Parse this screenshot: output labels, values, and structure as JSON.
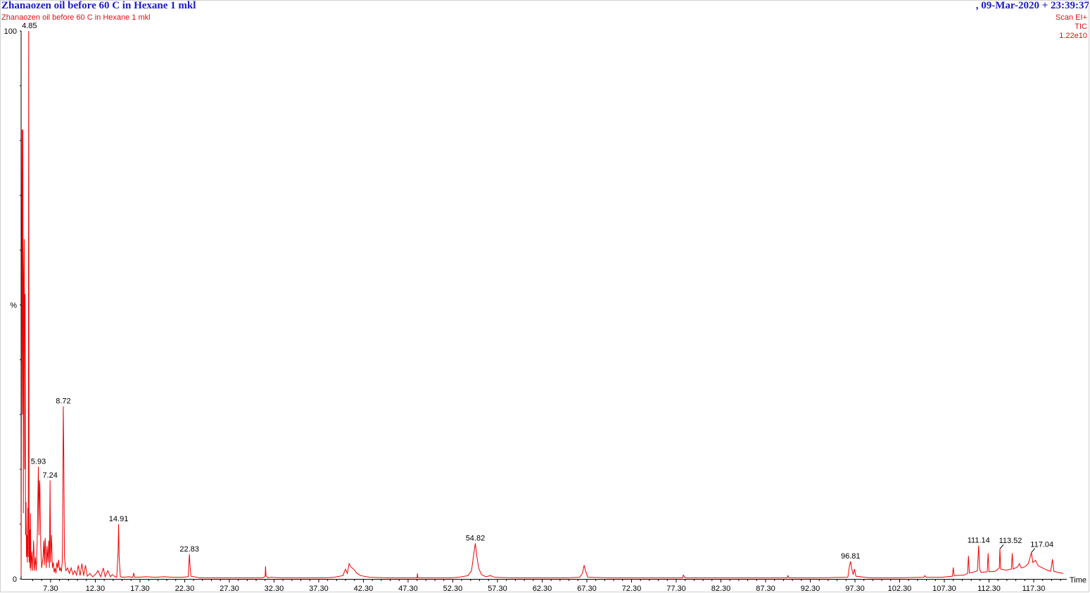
{
  "header": {
    "title": "Zhanaozen oil before 60 C in Hexane 1 mkl",
    "date_time": ",  09-Mar-2020 + 23:39:37",
    "subtitle": "Zhanaozen oil before 60 C in Hexane 1 mkl",
    "scan_mode": "Scan EI+",
    "trace": "TIC",
    "intensity": "1.22e10"
  },
  "colors": {
    "trace": "#ee0000",
    "title": "#1a1acc",
    "axis": "#000000"
  },
  "chart_data": {
    "type": "line",
    "title": "Zhanaozen oil before 60 C in Hexane 1 mkl",
    "xlabel": "Time",
    "ylabel": "%",
    "xlim": [
      4.0,
      121.0
    ],
    "ylim": [
      0,
      100
    ],
    "y_tick_labels": [
      "0",
      "%",
      "100"
    ],
    "x_ticks": [
      7.3,
      12.3,
      17.3,
      22.3,
      27.3,
      32.3,
      37.3,
      42.3,
      47.3,
      52.3,
      57.3,
      62.3,
      67.3,
      72.3,
      77.3,
      82.3,
      87.3,
      92.3,
      97.3,
      102.3,
      107.3,
      112.3,
      117.3
    ],
    "x_tick_labels": [
      "7.30",
      "12.30",
      "17.30",
      "22.30",
      "27.30",
      "32.30",
      "37.30",
      "42.30",
      "47.30",
      "52.30",
      "57.30",
      "62.30",
      "67.30",
      "72.30",
      "77.30",
      "82.30",
      "87.30",
      "92.30",
      "97.30",
      "102.30",
      "107.30",
      "112.30",
      "117.30"
    ],
    "grid": false,
    "legend": "none",
    "series": [
      {
        "points": [
          [
            4.0,
            0.5
          ],
          [
            4.05,
            40
          ],
          [
            4.1,
            82
          ],
          [
            4.15,
            30
          ],
          [
            4.2,
            82
          ],
          [
            4.25,
            12
          ],
          [
            4.3,
            55
          ],
          [
            4.35,
            62
          ],
          [
            4.4,
            20
          ],
          [
            4.45,
            52
          ],
          [
            4.5,
            8
          ],
          [
            4.55,
            14
          ],
          [
            4.6,
            4
          ],
          [
            4.65,
            8
          ],
          [
            4.7,
            3
          ],
          [
            4.75,
            13
          ],
          [
            4.8,
            4
          ],
          [
            4.85,
            100
          ],
          [
            4.9,
            3
          ],
          [
            4.95,
            9
          ],
          [
            5.0,
            2
          ],
          [
            5.05,
            12
          ],
          [
            5.1,
            1.5
          ],
          [
            5.2,
            5
          ],
          [
            5.3,
            1.5
          ],
          [
            5.4,
            7
          ],
          [
            5.5,
            1.5
          ],
          [
            5.6,
            4
          ],
          [
            5.7,
            1.5
          ],
          [
            5.8,
            7
          ],
          [
            5.93,
            20.5
          ],
          [
            6.0,
            8
          ],
          [
            6.05,
            18
          ],
          [
            6.1,
            17
          ],
          [
            6.2,
            6
          ],
          [
            6.3,
            2
          ],
          [
            6.45,
            4
          ],
          [
            6.55,
            7
          ],
          [
            6.6,
            2.5
          ],
          [
            6.7,
            7.5
          ],
          [
            6.8,
            2
          ],
          [
            6.9,
            6
          ],
          [
            7.0,
            3
          ],
          [
            7.1,
            7
          ],
          [
            7.17,
            2
          ],
          [
            7.24,
            18
          ],
          [
            7.3,
            3
          ],
          [
            7.4,
            8
          ],
          [
            7.5,
            2
          ],
          [
            7.6,
            3
          ],
          [
            7.7,
            1.2
          ],
          [
            7.8,
            2
          ],
          [
            7.9,
            1
          ],
          [
            8.0,
            3
          ],
          [
            8.1,
            2
          ],
          [
            8.2,
            3.5
          ],
          [
            8.3,
            1.5
          ],
          [
            8.4,
            2
          ],
          [
            8.5,
            1.3
          ],
          [
            8.6,
            3
          ],
          [
            8.65,
            10
          ],
          [
            8.72,
            31.5
          ],
          [
            8.78,
            22
          ],
          [
            8.85,
            4
          ],
          [
            9.0,
            1.5
          ],
          [
            9.2,
            2
          ],
          [
            9.4,
            1
          ],
          [
            9.6,
            2
          ],
          [
            9.8,
            0.8
          ],
          [
            10.0,
            1.5
          ],
          [
            10.2,
            0.7
          ],
          [
            10.4,
            2.5
          ],
          [
            10.6,
            0.6
          ],
          [
            10.8,
            2.8
          ],
          [
            11.0,
            0.6
          ],
          [
            11.2,
            2.5
          ],
          [
            11.4,
            0.5
          ],
          [
            11.7,
            1
          ],
          [
            12.0,
            0.4
          ],
          [
            12.3,
            0.8
          ],
          [
            12.6,
            1.5
          ],
          [
            12.9,
            0.4
          ],
          [
            13.2,
            2
          ],
          [
            13.4,
            0.4
          ],
          [
            13.7,
            1.5
          ],
          [
            14.0,
            0.4
          ],
          [
            14.2,
            0.8
          ],
          [
            14.5,
            0.4
          ],
          [
            14.7,
            0.3
          ],
          [
            14.85,
            5
          ],
          [
            14.91,
            10
          ],
          [
            14.97,
            4
          ],
          [
            15.1,
            0.4
          ],
          [
            15.5,
            0.3
          ],
          [
            16.0,
            0.4
          ],
          [
            16.5,
            0.3
          ],
          [
            16.6,
            1.1
          ],
          [
            16.7,
            0.3
          ],
          [
            17.0,
            0.3
          ],
          [
            18.0,
            0.4
          ],
          [
            19.0,
            0.3
          ],
          [
            20.0,
            0.4
          ],
          [
            21.0,
            0.3
          ],
          [
            22.0,
            0.3
          ],
          [
            22.7,
            0.4
          ],
          [
            22.78,
            3
          ],
          [
            22.83,
            4.5
          ],
          [
            22.9,
            2.5
          ],
          [
            23.0,
            0.5
          ],
          [
            24.0,
            0.2
          ],
          [
            26.0,
            0.2
          ],
          [
            28.0,
            0.2
          ],
          [
            30.0,
            0.2
          ],
          [
            31.0,
            0.2
          ],
          [
            31.3,
            0.4
          ],
          [
            31.35,
            2.3
          ],
          [
            31.4,
            0.6
          ],
          [
            31.6,
            0.2
          ],
          [
            32.0,
            0.3
          ],
          [
            33.0,
            0.2
          ],
          [
            36.0,
            0.2
          ],
          [
            38.0,
            0.2
          ],
          [
            39.0,
            0.3
          ],
          [
            40.0,
            0.6
          ],
          [
            40.3,
            1.8
          ],
          [
            40.5,
            1.0
          ],
          [
            40.7,
            2.8
          ],
          [
            40.9,
            2.2
          ],
          [
            41.2,
            1.8
          ],
          [
            41.6,
            1.0
          ],
          [
            42.0,
            0.6
          ],
          [
            43.0,
            0.3
          ],
          [
            45.0,
            0.2
          ],
          [
            47.0,
            0.2
          ],
          [
            48.3,
            0.2
          ],
          [
            48.35,
            1
          ],
          [
            48.4,
            0.2
          ],
          [
            50.0,
            0.2
          ],
          [
            52.0,
            0.2
          ],
          [
            53.0,
            0.3
          ],
          [
            54.0,
            0.6
          ],
          [
            54.4,
            1.5
          ],
          [
            54.6,
            4
          ],
          [
            54.82,
            6.5
          ],
          [
            55.0,
            4
          ],
          [
            55.2,
            2
          ],
          [
            55.5,
            0.8
          ],
          [
            56.0,
            0.4
          ],
          [
            56.5,
            0.6
          ],
          [
            57.0,
            0.3
          ],
          [
            59.0,
            0.2
          ],
          [
            62.0,
            0.2
          ],
          [
            65.0,
            0.2
          ],
          [
            66.5,
            0.3
          ],
          [
            66.8,
            1
          ],
          [
            67.0,
            2.5
          ],
          [
            67.15,
            1.5
          ],
          [
            67.4,
            0.3
          ],
          [
            70.0,
            0.2
          ],
          [
            75.0,
            0.2
          ],
          [
            78.0,
            0.2
          ],
          [
            78.1,
            0.7
          ],
          [
            78.3,
            0.2
          ],
          [
            82.0,
            0.2
          ],
          [
            86.0,
            0.2
          ],
          [
            89.7,
            0.2
          ],
          [
            89.8,
            0.6
          ],
          [
            89.9,
            0.2
          ],
          [
            93.0,
            0.2
          ],
          [
            96.5,
            0.3
          ],
          [
            96.7,
            2.5
          ],
          [
            96.81,
            3.2
          ],
          [
            96.95,
            1.8
          ],
          [
            97.1,
            0.8
          ],
          [
            97.25,
            1.8
          ],
          [
            97.4,
            0.5
          ],
          [
            99.0,
            0.2
          ],
          [
            102.0,
            0.2
          ],
          [
            105.0,
            0.3
          ],
          [
            105.1,
            0.6
          ],
          [
            105.3,
            0.3
          ],
          [
            107.0,
            0.3
          ],
          [
            108.2,
            0.5
          ],
          [
            108.3,
            2.1
          ],
          [
            108.4,
            0.6
          ],
          [
            109.5,
            0.7
          ],
          [
            109.9,
            1.0
          ],
          [
            110.0,
            4.2
          ],
          [
            110.1,
            1.1
          ],
          [
            110.5,
            1.2
          ],
          [
            111.0,
            1.5
          ],
          [
            111.14,
            6.1
          ],
          [
            111.25,
            1.8
          ],
          [
            111.4,
            1.2
          ],
          [
            112.1,
            1.3
          ],
          [
            112.2,
            4.7
          ],
          [
            112.3,
            1.3
          ],
          [
            113.0,
            1.4
          ],
          [
            113.45,
            2
          ],
          [
            113.52,
            5.5
          ],
          [
            113.6,
            1.8
          ],
          [
            114.2,
            1.6
          ],
          [
            114.8,
            1.8
          ],
          [
            114.9,
            4.7
          ],
          [
            115.0,
            1.8
          ],
          [
            115.5,
            2.2
          ],
          [
            115.7,
            2.8
          ],
          [
            115.9,
            2.0
          ],
          [
            116.3,
            2.2
          ],
          [
            116.7,
            2.8
          ],
          [
            117.04,
            4.8
          ],
          [
            117.2,
            3.0
          ],
          [
            117.5,
            3.4
          ],
          [
            117.8,
            2.4
          ],
          [
            118.3,
            2.0
          ],
          [
            118.8,
            1.6
          ],
          [
            119.2,
            1.4
          ],
          [
            119.4,
            3.6
          ],
          [
            119.55,
            1.4
          ],
          [
            120.0,
            1.2
          ],
          [
            120.6,
            1.0
          ]
        ]
      }
    ],
    "annotations": [
      {
        "label": "4.85",
        "x": 4.85,
        "y": 100
      },
      {
        "label": "5.93",
        "x": 5.93,
        "y": 20.5
      },
      {
        "label": "7.24",
        "x": 7.24,
        "y": 18
      },
      {
        "label": "8.72",
        "x": 8.72,
        "y": 31.5
      },
      {
        "label": "14.91",
        "x": 14.91,
        "y": 10
      },
      {
        "label": "22.83",
        "x": 22.83,
        "y": 4.5
      },
      {
        "label": "54.82",
        "x": 54.82,
        "y": 6.5
      },
      {
        "label": "96.81",
        "x": 96.81,
        "y": 3.2
      },
      {
        "label": "111.14",
        "x": 111.14,
        "y": 6.1
      },
      {
        "label": "113.52",
        "x": 113.52,
        "y": 5.5
      },
      {
        "label": "117.04",
        "x": 117.04,
        "y": 4.8
      }
    ]
  }
}
